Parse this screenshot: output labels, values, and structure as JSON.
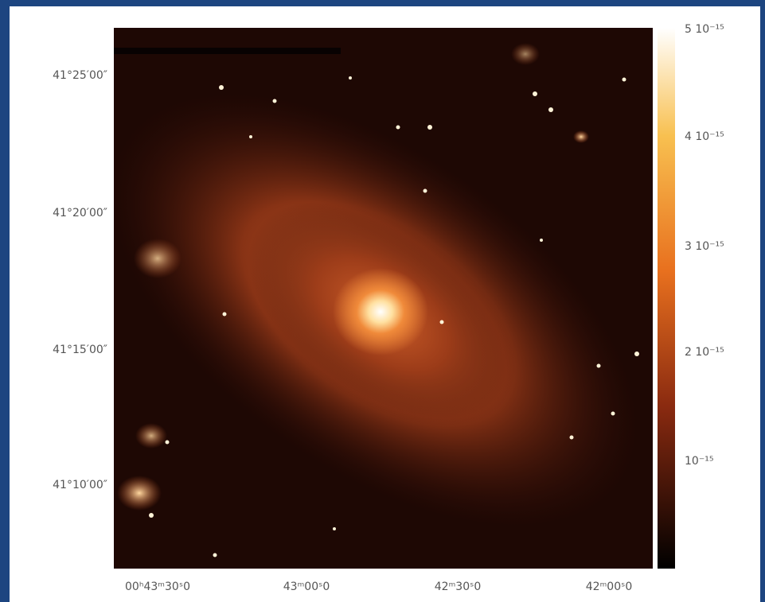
{
  "figure": {
    "y_labels": [
      "41°25′00″",
      "41°20′00″",
      "41°15′00″",
      "41°10′00″"
    ],
    "x_labels": [
      "00ʰ43ᵐ30ˢ0",
      "43ᵐ00ˢ0",
      "42ᵐ30ˢ0",
      "42ᵐ00ˢ0"
    ],
    "colorbar_labels": [
      "5 10⁻¹⁵",
      "4 10⁻¹⁵",
      "3 10⁻¹⁵",
      "2 10⁻¹⁵",
      "10⁻¹⁵"
    ]
  }
}
